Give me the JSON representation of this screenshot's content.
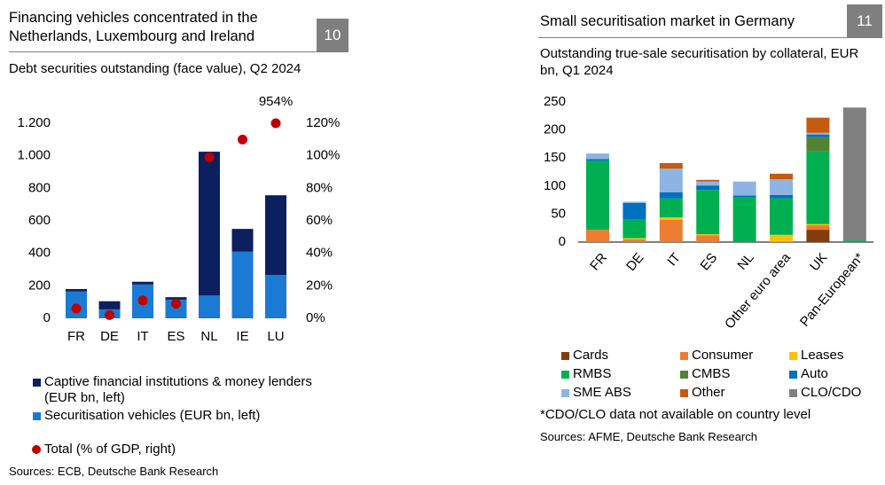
{
  "chart_data": [
    {
      "type": "bar",
      "stacked": true,
      "title": "Financing vehicles concentrated in the Netherlands, Luxembourg and Ireland",
      "number": "10",
      "subtitle": "Debt securities outstanding (face value), Q2 2024",
      "categories": [
        "FR",
        "DE",
        "IT",
        "ES",
        "NL",
        "IE",
        "LU"
      ],
      "series": [
        {
          "name": "Securitisation vehicles (EUR bn, left)",
          "color": "#1a7ad4",
          "values": [
            165,
            55,
            208,
            115,
            140,
            410,
            267
          ]
        },
        {
          "name": "Captive financial institutions & money lenders (EUR bn, left)",
          "color": "#0c1f5e",
          "values": [
            15,
            50,
            17,
            15,
            885,
            140,
            490
          ]
        },
        {
          "name": "Total (% of GDP, right)",
          "type": "scatter",
          "axis": "y2",
          "color": "#c00000",
          "values": [
            6,
            2,
            11,
            9,
            99,
            110,
            954
          ],
          "value_labels": [
            null,
            null,
            null,
            null,
            null,
            null,
            "954%"
          ]
        }
      ],
      "legend_reversed": true,
      "ylim": [
        0,
        1200
      ],
      "yticks": [
        0,
        200,
        400,
        600,
        800,
        {
          "value": 1000,
          "label": "1.000"
        },
        {
          "value": 1200,
          "label": "1.200"
        }
      ],
      "y2lim": [
        0,
        120
      ],
      "y2ticks": [
        {
          "value": 0,
          "label": "0%"
        },
        {
          "value": 20,
          "label": "20%"
        },
        {
          "value": 40,
          "label": "40%"
        },
        {
          "value": 60,
          "label": "60%"
        },
        {
          "value": 80,
          "label": "80%"
        },
        {
          "value": 100,
          "label": "100%"
        },
        {
          "value": 120,
          "label": "120%"
        }
      ],
      "grid": false,
      "source": "Sources: ECB, Deutsche Bank Research"
    },
    {
      "type": "bar",
      "stacked": true,
      "title": "Small securitisation market in Germany",
      "number": "11",
      "subtitle": "Outstanding true-sale securitisation by collateral, EUR bn, Q1 2024",
      "categories": [
        "FR",
        "DE",
        "IT",
        "ES",
        "NL",
        "Other euro area",
        "UK",
        "Pan-European*"
      ],
      "series": [
        {
          "name": "Cards",
          "color": "#843c0c",
          "values": [
            0,
            0,
            0,
            0,
            0,
            0,
            22,
            0
          ]
        },
        {
          "name": "Consumer",
          "color": "#ed7d31",
          "values": [
            22,
            5,
            40,
            12,
            0,
            1,
            8,
            0
          ]
        },
        {
          "name": "Leases",
          "color": "#ffc000",
          "values": [
            0,
            2,
            4,
            2,
            0,
            12,
            2,
            0
          ]
        },
        {
          "name": "RMBS",
          "color": "#00b050",
          "values": [
            123,
            33,
            34,
            79,
            80,
            65,
            130,
            3
          ]
        },
        {
          "name": "CMBS",
          "color": "#548235",
          "values": [
            0,
            0,
            0,
            0,
            0,
            0,
            25,
            0
          ]
        },
        {
          "name": "Auto",
          "color": "#0070c0",
          "values": [
            3,
            30,
            11,
            8,
            3,
            6,
            5,
            0
          ]
        },
        {
          "name": "SME ABS",
          "color": "#8eb4e3",
          "values": [
            10,
            2,
            42,
            7,
            25,
            28,
            3,
            0
          ]
        },
        {
          "name": "Other",
          "color": "#c55a11",
          "values": [
            0,
            0,
            10,
            3,
            0,
            10,
            27,
            0
          ]
        },
        {
          "name": "CLO/CDO",
          "color": "#808080",
          "values": [
            0,
            0,
            0,
            0,
            0,
            0,
            0,
            237
          ]
        }
      ],
      "legend_reversed": false,
      "ylim": [
        0,
        250
      ],
      "yticks": [
        0,
        50,
        100,
        150,
        200,
        250
      ],
      "grid": false,
      "note": "*CDO/CLO data not available on country level",
      "source": "Sources: AFME, Deutsche Bank Research"
    }
  ]
}
